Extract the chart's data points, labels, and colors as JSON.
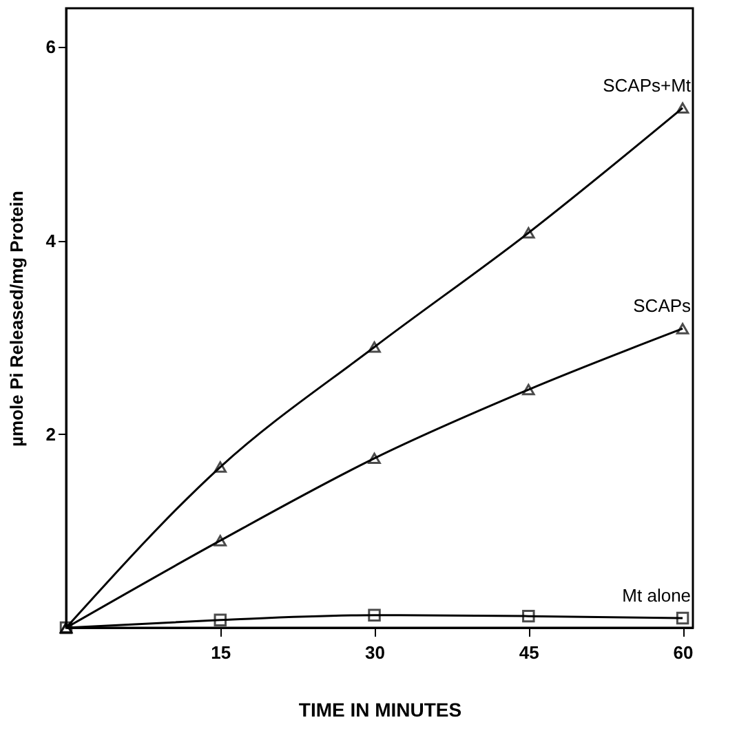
{
  "chart_data": {
    "type": "line",
    "xlabel": "TIME IN MINUTES",
    "ylabel": "µmole Pi Released/mg Protein",
    "x": [
      0,
      15,
      30,
      45,
      60
    ],
    "series": [
      {
        "name": "SCAPs+Mt",
        "color": "#000000",
        "marker": "triangle",
        "values": [
          0,
          1.66,
          2.9,
          4.08,
          5.37
        ]
      },
      {
        "name": "SCAPs",
        "color": "#000000",
        "marker": "triangle",
        "values": [
          0,
          0.9,
          1.75,
          2.46,
          3.09
        ]
      },
      {
        "name": "Mt alone",
        "color": "#000000",
        "marker": "square",
        "values": [
          0,
          0.08,
          0.13,
          0.12,
          0.1
        ]
      }
    ],
    "xlim": [
      0,
      61
    ],
    "ylim": [
      0,
      6.4
    ],
    "xticks": [
      15,
      30,
      45,
      60
    ],
    "yticks": [
      2,
      4,
      6
    ],
    "grid": false
  }
}
